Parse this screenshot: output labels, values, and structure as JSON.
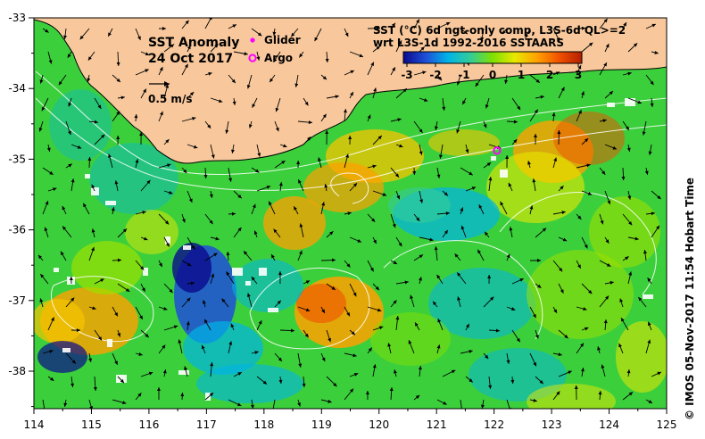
{
  "title": {
    "line1": "SST Anomaly",
    "line2": "24 Oct 2017"
  },
  "velocity_scale": {
    "label": "0.5 m/s"
  },
  "legend": {
    "glider": {
      "label": "Glider",
      "color": "#ff00ff"
    },
    "argo": {
      "label": "Argo",
      "color": "#ff00ff"
    }
  },
  "colorbar": {
    "title_line1": "SST (°C) 6d ngt-only comp, L3S-6d QL>=2",
    "title_line2": "wrt L3S-1d 1992-2016 SSTAARS",
    "ticks": [
      "-3",
      "-2",
      "-1",
      "0",
      "1",
      "2",
      "3"
    ],
    "colors": [
      "#0a0a8c",
      "#1f4fd8",
      "#00b4e6",
      "#33cc99",
      "#7fe000",
      "#e8e800",
      "#ffa000",
      "#f05000",
      "#b41e00"
    ]
  },
  "axes": {
    "x_ticks": [
      "114",
      "115",
      "116",
      "117",
      "118",
      "119",
      "120",
      "121",
      "122",
      "123",
      "124",
      "125"
    ],
    "y_ticks": [
      "-33",
      "-34",
      "-35",
      "-36",
      "-37",
      "-38"
    ]
  },
  "land_color": "#f8c89c",
  "argo_float": {
    "lon": 122.05,
    "lat": -34.88
  },
  "credit": "© IMOS 05-Nov-2017 11:54 Hobart Time"
}
